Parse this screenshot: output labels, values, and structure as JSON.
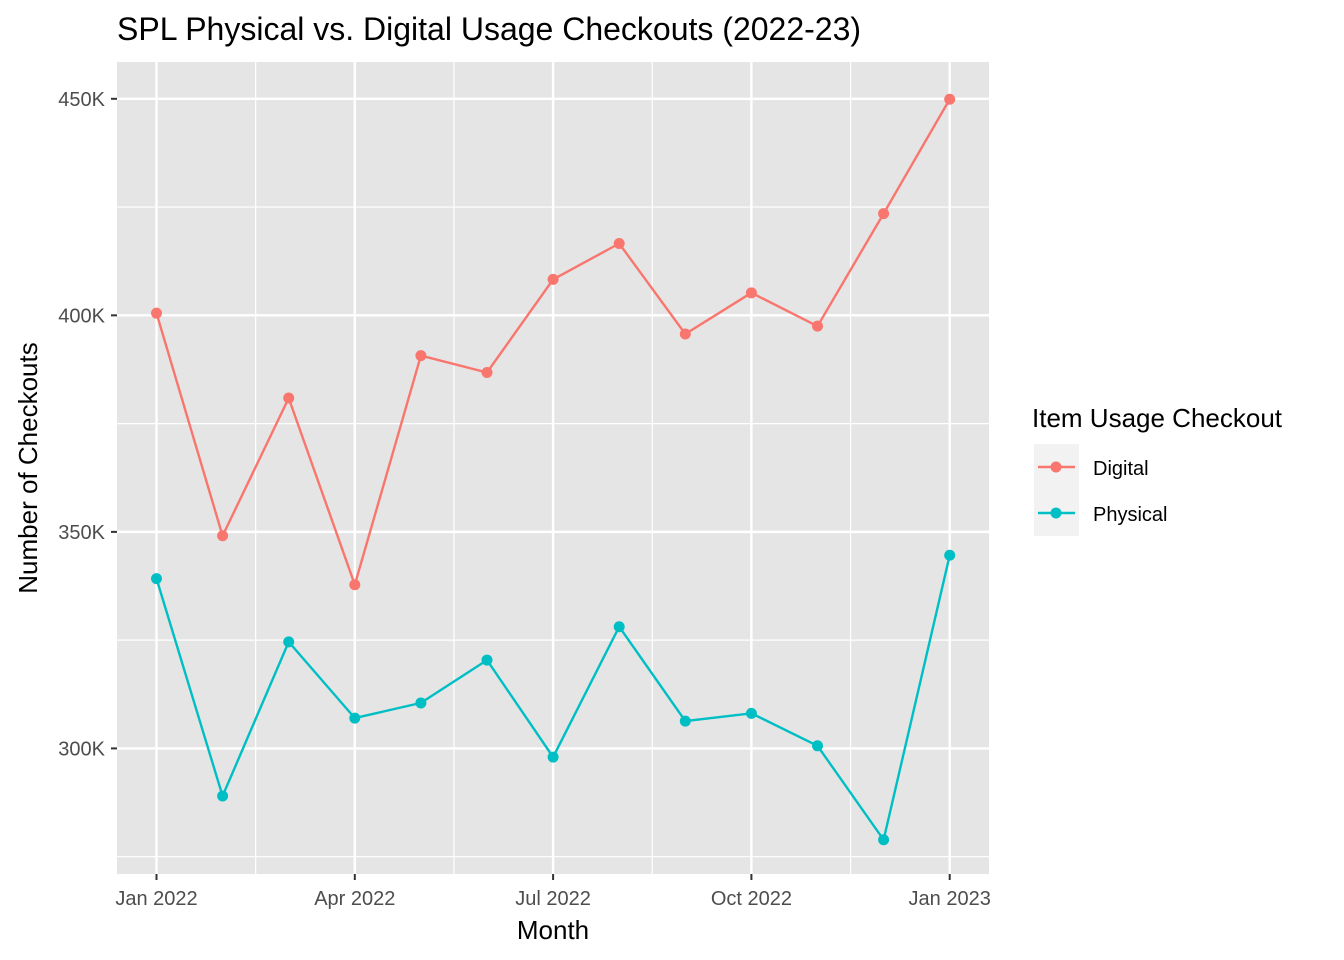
{
  "chart_data": {
    "type": "line",
    "title": "SPL Physical vs. Digital Usage Checkouts (2022-23)",
    "xlabel": "Month",
    "ylabel": "Number of Checkouts",
    "x_ticks": [
      "Jan 2022",
      "Apr 2022",
      "Jul 2022",
      "Oct 2022",
      "Jan 2023"
    ],
    "y_ticks": [
      "300K",
      "350K",
      "400K",
      "450K"
    ],
    "y_tick_values": [
      300000,
      350000,
      400000,
      450000
    ],
    "ylim": [
      271000,
      458500
    ],
    "x": [
      "2022-01",
      "2022-02",
      "2022-03",
      "2022-04",
      "2022-05",
      "2022-06",
      "2022-07",
      "2022-08",
      "2022-09",
      "2022-10",
      "2022-11",
      "2022-12",
      "2023-01"
    ],
    "series": [
      {
        "name": "Digital",
        "color": "#F8766D",
        "values": [
          400500,
          349100,
          380900,
          337800,
          390700,
          386800,
          408300,
          416600,
          395700,
          405200,
          397500,
          423500,
          449900
        ]
      },
      {
        "name": "Physical",
        "color": "#00BFC4",
        "values": [
          339200,
          289000,
          324600,
          307000,
          310500,
          320400,
          298000,
          328100,
          306300,
          308100,
          300600,
          278900,
          344600
        ]
      }
    ],
    "legend": {
      "title": "Item Usage Checkout",
      "position": "right"
    },
    "grid": true,
    "panel_background": "#E5E5E5"
  }
}
